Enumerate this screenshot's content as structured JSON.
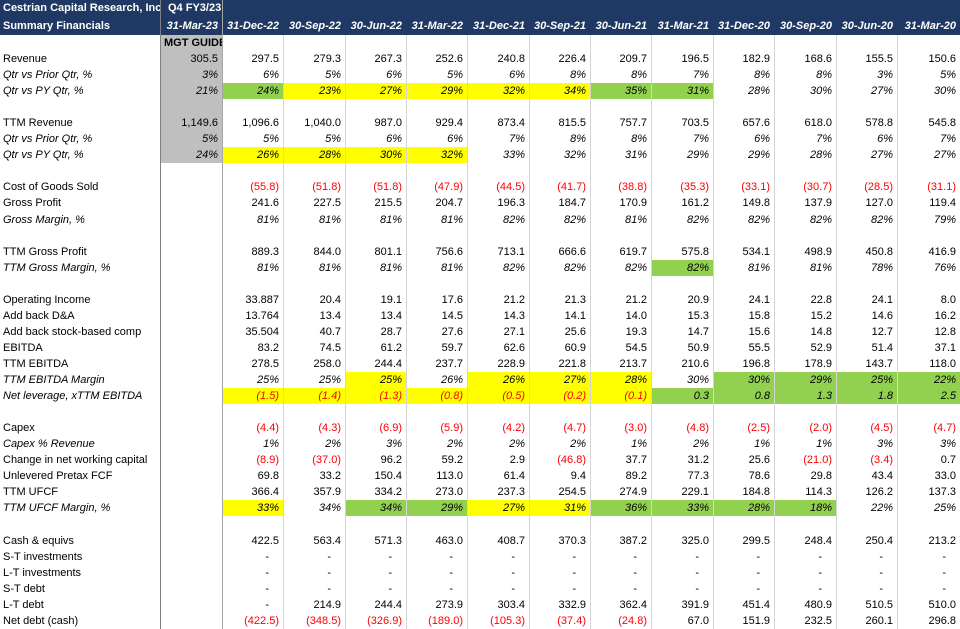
{
  "header": {
    "company": "Cestrian Capital Research, Inc",
    "subtitle": "Summary Financials",
    "period_label": "Q4 FY3/23",
    "guide_label": "MGT GUIDE",
    "dates": [
      "31-Mar-23",
      "31-Dec-22",
      "30-Sep-22",
      "30-Jun-22",
      "31-Mar-22",
      "31-Dec-21",
      "30-Sep-21",
      "30-Jun-21",
      "31-Mar-21",
      "31-Dec-20",
      "30-Sep-20",
      "30-Jun-20",
      "31-Mar-20"
    ]
  },
  "table": {
    "rows": [
      {
        "label": "Revenue",
        "guide": "305.5",
        "values": [
          "297.5",
          "279.3",
          "267.3",
          "252.6",
          "240.8",
          "226.4",
          "209.7",
          "196.5",
          "182.9",
          "168.6",
          "155.5",
          "150.6"
        ]
      },
      {
        "label": "Qtr vs Prior Qtr, %",
        "guide": "3%",
        "values": [
          "6%",
          "5%",
          "6%",
          "5%",
          "6%",
          "8%",
          "8%",
          "7%",
          "8%",
          "8%",
          "3%",
          "5%"
        ]
      },
      {
        "label": "Qtr vs PY Qtr, %",
        "guide": "21%",
        "values": [
          "24%",
          "23%",
          "27%",
          "29%",
          "32%",
          "34%",
          "35%",
          "31%",
          "28%",
          "30%",
          "27%",
          "30%"
        ]
      },
      {
        "label": "TTM Revenue",
        "guide": "1,149.6",
        "values": [
          "1,096.6",
          "1,040.0",
          "987.0",
          "929.4",
          "873.4",
          "815.5",
          "757.7",
          "703.5",
          "657.6",
          "618.0",
          "578.8",
          "545.8"
        ]
      },
      {
        "label": "Qtr vs Prior Qtr, %",
        "guide": "5%",
        "values": [
          "5%",
          "5%",
          "6%",
          "6%",
          "7%",
          "8%",
          "8%",
          "7%",
          "6%",
          "7%",
          "6%",
          "7%"
        ]
      },
      {
        "label": "Qtr vs PY Qtr, %",
        "guide": "24%",
        "values": [
          "26%",
          "28%",
          "30%",
          "32%",
          "33%",
          "32%",
          "31%",
          "29%",
          "29%",
          "28%",
          "27%",
          "27%"
        ]
      },
      {
        "label": "Cost of Goods Sold",
        "values": [
          "(55.8)",
          "(51.8)",
          "(51.8)",
          "(47.9)",
          "(44.5)",
          "(41.7)",
          "(38.8)",
          "(35.3)",
          "(33.1)",
          "(30.7)",
          "(28.5)",
          "(31.1)"
        ]
      },
      {
        "label": "Gross Profit",
        "values": [
          "241.6",
          "227.5",
          "215.5",
          "204.7",
          "196.3",
          "184.7",
          "170.9",
          "161.2",
          "149.8",
          "137.9",
          "127.0",
          "119.4"
        ]
      },
      {
        "label": "Gross Margin, %",
        "values": [
          "81%",
          "81%",
          "81%",
          "81%",
          "82%",
          "82%",
          "81%",
          "82%",
          "82%",
          "82%",
          "82%",
          "79%"
        ]
      },
      {
        "label": "TTM Gross Profit",
        "values": [
          "889.3",
          "844.0",
          "801.1",
          "756.6",
          "713.1",
          "666.6",
          "619.7",
          "575.8",
          "534.1",
          "498.9",
          "450.8",
          "416.9"
        ]
      },
      {
        "label": "TTM Gross Margin, %",
        "values": [
          "81%",
          "81%",
          "81%",
          "81%",
          "82%",
          "82%",
          "82%",
          "82%",
          "81%",
          "81%",
          "78%",
          "76%"
        ]
      },
      {
        "label": "Operating Income",
        "values": [
          "33.887",
          "20.4",
          "19.1",
          "17.6",
          "21.2",
          "21.3",
          "21.2",
          "20.9",
          "24.1",
          "22.8",
          "24.1",
          "8.0"
        ]
      },
      {
        "label": "Add back D&A",
        "values": [
          "13.764",
          "13.4",
          "13.4",
          "14.5",
          "14.3",
          "14.1",
          "14.0",
          "15.3",
          "15.8",
          "15.2",
          "14.6",
          "16.2"
        ]
      },
      {
        "label": "Add back stock-based comp",
        "values": [
          "35.504",
          "40.7",
          "28.7",
          "27.6",
          "27.1",
          "25.6",
          "19.3",
          "14.7",
          "15.6",
          "14.8",
          "12.7",
          "12.8"
        ]
      },
      {
        "label": "EBITDA",
        "values": [
          "83.2",
          "74.5",
          "61.2",
          "59.7",
          "62.6",
          "60.9",
          "54.5",
          "50.9",
          "55.5",
          "52.9",
          "51.4",
          "37.1"
        ]
      },
      {
        "label": "TTM EBITDA",
        "values": [
          "278.5",
          "258.0",
          "244.4",
          "237.7",
          "228.9",
          "221.8",
          "213.7",
          "210.6",
          "196.8",
          "178.9",
          "143.7",
          "118.0"
        ]
      },
      {
        "label": "TTM EBITDA Margin",
        "values": [
          "25%",
          "25%",
          "25%",
          "26%",
          "26%",
          "27%",
          "28%",
          "30%",
          "30%",
          "29%",
          "25%",
          "22%"
        ]
      },
      {
        "label": "Net leverage, xTTM EBITDA",
        "values": [
          "(1.5)",
          "(1.4)",
          "(1.3)",
          "(0.8)",
          "(0.5)",
          "(0.2)",
          "(0.1)",
          "0.3",
          "0.8",
          "1.3",
          "1.8",
          "2.5"
        ]
      },
      {
        "label": "Capex",
        "values": [
          "(4.4)",
          "(4.3)",
          "(6.9)",
          "(5.9)",
          "(4.2)",
          "(4.7)",
          "(3.0)",
          "(4.8)",
          "(2.5)",
          "(2.0)",
          "(4.5)",
          "(4.7)"
        ]
      },
      {
        "label": "Capex % Revenue",
        "values": [
          "1%",
          "2%",
          "3%",
          "2%",
          "2%",
          "2%",
          "1%",
          "2%",
          "1%",
          "1%",
          "3%",
          "3%"
        ]
      },
      {
        "label": "Change in net working capital",
        "values": [
          "(8.9)",
          "(37.0)",
          "96.2",
          "59.2",
          "2.9",
          "(46.8)",
          "37.7",
          "31.2",
          "25.6",
          "(21.0)",
          "(3.4)",
          "0.7"
        ]
      },
      {
        "label": "Unlevered Pretax FCF",
        "values": [
          "69.8",
          "33.2",
          "150.4",
          "113.0",
          "61.4",
          "9.4",
          "89.2",
          "77.3",
          "78.6",
          "29.8",
          "43.4",
          "33.0"
        ]
      },
      {
        "label": "TTM UFCF",
        "values": [
          "366.4",
          "357.9",
          "334.2",
          "273.0",
          "237.3",
          "254.5",
          "274.9",
          "229.1",
          "184.8",
          "114.3",
          "126.2",
          "137.3"
        ]
      },
      {
        "label": "TTM UFCF Margin, %",
        "values": [
          "33%",
          "34%",
          "34%",
          "29%",
          "27%",
          "31%",
          "36%",
          "33%",
          "28%",
          "18%",
          "22%",
          "25%"
        ]
      },
      {
        "label": "Cash & equivs",
        "values": [
          "422.5",
          "563.4",
          "571.3",
          "463.0",
          "408.7",
          "370.3",
          "387.2",
          "325.0",
          "299.5",
          "248.4",
          "250.4",
          "213.2"
        ]
      },
      {
        "label": "S-T investments",
        "values": [
          "-",
          "-",
          "-",
          "-",
          "-",
          "-",
          "-",
          "-",
          "-",
          "-",
          "-",
          "-"
        ]
      },
      {
        "label": "L-T investments",
        "values": [
          "-",
          "-",
          "-",
          "-",
          "-",
          "-",
          "-",
          "-",
          "-",
          "-",
          "-",
          "-"
        ]
      },
      {
        "label": "S-T debt",
        "values": [
          "-",
          "-",
          "-",
          "-",
          "-",
          "-",
          "-",
          "-",
          "-",
          "-",
          "-",
          "-"
        ]
      },
      {
        "label": "L-T debt",
        "values": [
          "-",
          "214.9",
          "244.4",
          "273.9",
          "303.4",
          "332.9",
          "362.4",
          "391.9",
          "451.4",
          "480.9",
          "510.5",
          "510.0"
        ]
      },
      {
        "label": "Net debt (cash)",
        "values": [
          "(422.5)",
          "(348.5)",
          "(326.9)",
          "(189.0)",
          "(105.3)",
          "(37.4)",
          "(24.8)",
          "67.0",
          "151.9",
          "232.5",
          "260.1",
          "296.8"
        ]
      }
    ]
  }
}
